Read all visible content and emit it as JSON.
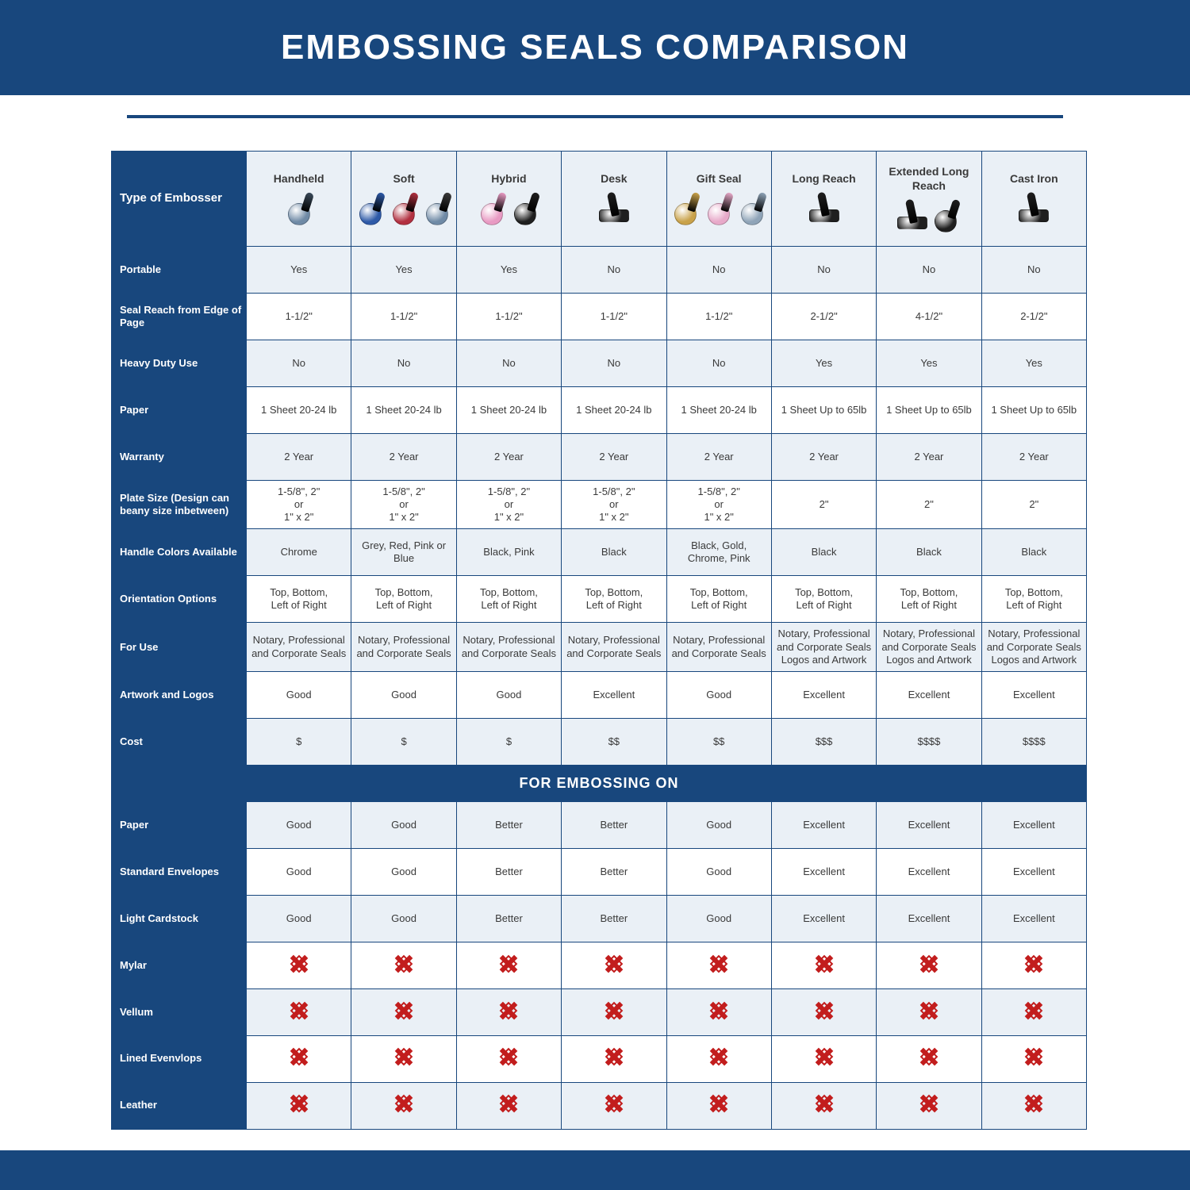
{
  "page": {
    "title": "EMBOSSING SEALS COMPARISON",
    "title_fontsize": 44,
    "title_color": "#ffffff",
    "band_color": "#18477d",
    "underline_color": "#18477d",
    "background": "#ffffff"
  },
  "table": {
    "border_color": "#18477d",
    "row_label_bg": "#18477d",
    "row_label_color": "#ffffff",
    "cell_bg_light": "#eaf0f6",
    "cell_bg_white": "#ffffff",
    "cell_text_color": "#3a3a3a",
    "header_bg": "#eaf0f6",
    "section_band_bg": "#18477d",
    "section_band_text": "FOR EMBOSSING ON",
    "x_icon_color": "#c21d1d",
    "type_label": "Type of Embosser"
  },
  "columns": [
    {
      "key": "handheld",
      "label": "Handheld",
      "icons": [
        {
          "base": "#6f8aa6",
          "handle": "#3a4a5a"
        }
      ]
    },
    {
      "key": "soft",
      "label": "Soft",
      "icons": [
        {
          "base": "#2e5aa8",
          "handle": "#2e5aa8"
        },
        {
          "base": "#b23040",
          "handle": "#b23040"
        },
        {
          "base": "#6f8aa6",
          "handle": "#3a3a3a"
        }
      ]
    },
    {
      "key": "hybrid",
      "label": "Hybrid",
      "icons": [
        {
          "base": "#e89ac3",
          "handle": "#e89ac3"
        },
        {
          "base": "#1f1f1f",
          "handle": "#1f1f1f"
        }
      ]
    },
    {
      "key": "desk",
      "label": "Desk",
      "icons": [
        {
          "base": "#1f1f1f",
          "handle": "#1f1f1f",
          "wide": true
        }
      ]
    },
    {
      "key": "gift",
      "label": "Gift Seal",
      "icons": [
        {
          "base": "#c9a24a",
          "handle": "#c9a24a"
        },
        {
          "base": "#e7a9c9",
          "handle": "#e7a9c9"
        },
        {
          "base": "#8fa4b8",
          "handle": "#8fa4b8"
        }
      ]
    },
    {
      "key": "long",
      "label": "Long Reach",
      "icons": [
        {
          "base": "#1f1f1f",
          "handle": "#1f1f1f",
          "wide": true
        }
      ]
    },
    {
      "key": "xlong",
      "label": "Extended Long Reach",
      "icons": [
        {
          "base": "#1f1f1f",
          "handle": "#1f1f1f",
          "wide": true
        },
        {
          "base": "#1f1f1f",
          "handle": "#1f1f1f"
        }
      ]
    },
    {
      "key": "cast",
      "label": "Cast Iron",
      "icons": [
        {
          "base": "#1f1f1f",
          "handle": "#1f1f1f",
          "wide": true
        }
      ]
    }
  ],
  "rows": [
    {
      "label": "Portable",
      "shade": "light",
      "cells": [
        "Yes",
        "Yes",
        "Yes",
        "No",
        "No",
        "No",
        "No",
        "No"
      ]
    },
    {
      "label": "Seal Reach from Edge of Page",
      "shade": "white",
      "cells": [
        "1-1/2\"",
        "1-1/2\"",
        "1-1/2\"",
        "1-1/2\"",
        "1-1/2\"",
        "2-1/2\"",
        "4-1/2\"",
        "2-1/2\""
      ]
    },
    {
      "label": "Heavy Duty Use",
      "shade": "light",
      "cells": [
        "No",
        "No",
        "No",
        "No",
        "No",
        "Yes",
        "Yes",
        "Yes"
      ]
    },
    {
      "label": "Paper",
      "shade": "white",
      "cells": [
        "1 Sheet 20-24 lb",
        "1 Sheet 20-24 lb",
        "1 Sheet 20-24 lb",
        "1 Sheet 20-24 lb",
        "1 Sheet 20-24 lb",
        "1 Sheet Up to 65lb",
        "1 Sheet Up to 65lb",
        "1 Sheet Up to 65lb"
      ]
    },
    {
      "label": "Warranty",
      "shade": "light",
      "cells": [
        "2 Year",
        "2 Year",
        "2 Year",
        "2 Year",
        "2 Year",
        "2 Year",
        "2 Year",
        "2 Year"
      ]
    },
    {
      "label": "Plate Size (Design can beany size inbetween)",
      "shade": "white",
      "cells": [
        "1-5/8\", 2\"\nor\n1\" x 2\"",
        "1-5/8\", 2\"\nor\n1\" x 2\"",
        "1-5/8\", 2\"\nor\n1\" x 2\"",
        "1-5/8\", 2\"\nor\n1\" x 2\"",
        "1-5/8\", 2\"\nor\n1\" x 2\"",
        "2\"",
        "2\"",
        "2\""
      ]
    },
    {
      "label": "Handle Colors Available",
      "shade": "light",
      "cells": [
        "Chrome",
        "Grey, Red, Pink or Blue",
        "Black, Pink",
        "Black",
        "Black, Gold, Chrome, Pink",
        "Black",
        "Black",
        "Black"
      ]
    },
    {
      "label": "Orientation Options",
      "shade": "white",
      "cells": [
        "Top, Bottom,\nLeft of Right",
        "Top, Bottom,\nLeft of Right",
        "Top, Bottom,\nLeft of Right",
        "Top, Bottom,\nLeft of Right",
        "Top, Bottom,\nLeft of Right",
        "Top, Bottom,\nLeft of Right",
        "Top, Bottom,\nLeft of Right",
        "Top, Bottom,\nLeft of Right"
      ]
    },
    {
      "label": "For Use",
      "shade": "light",
      "cells": [
        "Notary, Professional and Corporate Seals",
        "Notary, Professional and Corporate Seals",
        "Notary, Professional and Corporate Seals",
        "Notary, Professional and Corporate Seals",
        "Notary, Professional and Corporate Seals",
        "Notary, Professional and Corporate Seals Logos and Artwork",
        "Notary, Professional and Corporate Seals Logos and Artwork",
        "Notary, Professional and Corporate Seals Logos and Artwork"
      ]
    },
    {
      "label": "Artwork and Logos",
      "shade": "white",
      "cells": [
        "Good",
        "Good",
        "Good",
        "Excellent",
        "Good",
        "Excellent",
        "Excellent",
        "Excellent"
      ]
    },
    {
      "label": "Cost",
      "shade": "light",
      "cells": [
        "$",
        "$",
        "$",
        "$$",
        "$$",
        "$$$",
        "$$$$",
        "$$$$"
      ]
    }
  ],
  "embossing_rows": [
    {
      "label": "Paper",
      "shade": "light",
      "cells": [
        "Good",
        "Good",
        "Better",
        "Better",
        "Good",
        "Excellent",
        "Excellent",
        "Excellent"
      ]
    },
    {
      "label": "Standard Envelopes",
      "shade": "white",
      "cells": [
        "Good",
        "Good",
        "Better",
        "Better",
        "Good",
        "Excellent",
        "Excellent",
        "Excellent"
      ]
    },
    {
      "label": "Light Cardstock",
      "shade": "light",
      "cells": [
        "Good",
        "Good",
        "Better",
        "Better",
        "Good",
        "Excellent",
        "Excellent",
        "Excellent"
      ]
    },
    {
      "label": "Mylar",
      "shade": "white",
      "cells": [
        "X",
        "X",
        "X",
        "X",
        "X",
        "X",
        "X",
        "X"
      ]
    },
    {
      "label": "Vellum",
      "shade": "light",
      "cells": [
        "X",
        "X",
        "X",
        "X",
        "X",
        "X",
        "X",
        "X"
      ]
    },
    {
      "label": "Lined Evenvlops",
      "shade": "white",
      "cells": [
        "X",
        "X",
        "X",
        "X",
        "X",
        "X",
        "X",
        "X"
      ]
    },
    {
      "label": "Leather",
      "shade": "light",
      "cells": [
        "X",
        "X",
        "X",
        "X",
        "X",
        "X",
        "X",
        "X"
      ]
    }
  ]
}
